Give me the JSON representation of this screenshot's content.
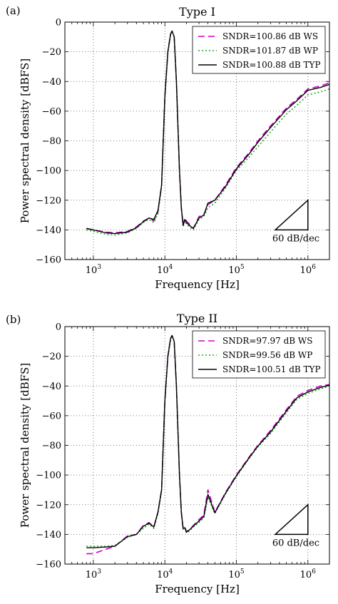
{
  "chart_data": [
    {
      "panel": "(a)",
      "type": "line",
      "title": "Type I",
      "xlabel": "Frequency [Hz]",
      "ylabel": "Power spectral density [dBFS]",
      "xscale": "log",
      "xlim": [
        400,
        2000000
      ],
      "ylim": [
        -160,
        0
      ],
      "xticks": [
        {
          "v": 1000,
          "base": "10",
          "exp": "3"
        },
        {
          "v": 10000,
          "base": "10",
          "exp": "4"
        },
        {
          "v": 100000,
          "base": "10",
          "exp": "5"
        },
        {
          "v": 1000000,
          "base": "10",
          "exp": "6"
        }
      ],
      "yticks": [
        0,
        -20,
        -40,
        -60,
        -80,
        -100,
        -120,
        -140,
        -160
      ],
      "ytick_labels": [
        "0",
        "−20",
        "−40",
        "−60",
        "−80",
        "−100",
        "−120",
        "−140",
        "−160"
      ],
      "grid": true,
      "legend_position": "top-right",
      "slope_marker": {
        "label": "60 dB/dec"
      },
      "series": [
        {
          "name": "SNDR=100.86 dB WS",
          "color": "#cc00cc",
          "dash": "9,5",
          "x": [
            800,
            1000,
            1500,
            2000,
            3000,
            4000,
            5000,
            6000,
            7000,
            8000,
            9000,
            10000,
            11000,
            12000,
            12600,
            13500,
            14500,
            16000,
            17000,
            18000,
            19000,
            20000,
            22000,
            25000,
            30000,
            35000,
            40000,
            50000,
            70000,
            100000,
            150000,
            200000,
            300000,
            500000,
            700000,
            1000000,
            1500000,
            2000000
          ],
          "y": [
            -139,
            -140,
            -141.5,
            -142,
            -141,
            -138,
            -134,
            -132,
            -134,
            -128,
            -110,
            -50,
            -20,
            -8,
            -6,
            -10,
            -40,
            -100,
            -125,
            -137,
            -132,
            -134,
            -136,
            -139,
            -131,
            -130,
            -123,
            -120,
            -110,
            -98,
            -88,
            -80,
            -70,
            -58,
            -52,
            -45,
            -43,
            -41
          ]
        },
        {
          "name": "SNDR=101.87 dB WP",
          "color": "#22aa22",
          "dash": "2,3",
          "x": [
            800,
            1000,
            1500,
            2000,
            3000,
            4000,
            5000,
            6000,
            7000,
            8000,
            9000,
            10000,
            11000,
            12000,
            12600,
            13500,
            14500,
            16000,
            17000,
            18000,
            19000,
            20000,
            22000,
            25000,
            30000,
            35000,
            40000,
            50000,
            70000,
            100000,
            150000,
            200000,
            300000,
            500000,
            700000,
            1000000,
            1500000,
            2000000
          ],
          "y": [
            -140,
            -141,
            -143,
            -143.5,
            -142,
            -139,
            -135,
            -133,
            -135,
            -129,
            -111,
            -52,
            -21,
            -9,
            -6,
            -10,
            -41,
            -101,
            -126,
            -138,
            -134,
            -136,
            -138,
            -140,
            -133,
            -131,
            -125,
            -122,
            -112,
            -100,
            -91,
            -84,
            -74,
            -62,
            -56,
            -49,
            -47,
            -45
          ]
        },
        {
          "name": "SNDR=100.88 dB TYP",
          "color": "#000000",
          "dash": "",
          "x": [
            800,
            1000,
            1500,
            2000,
            3000,
            4000,
            5000,
            6000,
            7000,
            8000,
            9000,
            10000,
            11000,
            12000,
            12600,
            13500,
            14500,
            16000,
            17000,
            18000,
            19000,
            20000,
            22000,
            25000,
            30000,
            35000,
            40000,
            50000,
            70000,
            100000,
            150000,
            200000,
            300000,
            500000,
            700000,
            1000000,
            1500000,
            2000000
          ],
          "y": [
            -139,
            -140,
            -142,
            -142.5,
            -141.5,
            -138.5,
            -134.5,
            -132,
            -133,
            -127,
            -110,
            -50,
            -20,
            -8,
            -6,
            -10,
            -40,
            -100,
            -125,
            -137,
            -133,
            -135,
            -137,
            -139,
            -132,
            -130,
            -122,
            -120,
            -111,
            -99,
            -89,
            -81,
            -71,
            -59,
            -53,
            -46,
            -44,
            -42
          ]
        }
      ]
    },
    {
      "panel": "(b)",
      "type": "line",
      "title": "Type II",
      "xlabel": "Frequency [Hz]",
      "ylabel": "Power spectral density [dBFS]",
      "xscale": "log",
      "xlim": [
        400,
        2000000
      ],
      "ylim": [
        -160,
        0
      ],
      "xticks": [
        {
          "v": 1000,
          "base": "10",
          "exp": "3"
        },
        {
          "v": 10000,
          "base": "10",
          "exp": "4"
        },
        {
          "v": 100000,
          "base": "10",
          "exp": "5"
        },
        {
          "v": 1000000,
          "base": "10",
          "exp": "6"
        }
      ],
      "yticks": [
        0,
        -20,
        -40,
        -60,
        -80,
        -100,
        -120,
        -140,
        -160
      ],
      "ytick_labels": [
        "0",
        "−20",
        "−40",
        "−60",
        "−80",
        "−100",
        "−120",
        "−140",
        "−160"
      ],
      "grid": true,
      "legend_position": "top-right",
      "slope_marker": {
        "label": "60 dB/dec"
      },
      "series": [
        {
          "name": "SNDR=97.97 dB WS",
          "color": "#cc00cc",
          "dash": "9,5",
          "x": [
            800,
            1000,
            1500,
            2000,
            3000,
            4000,
            5000,
            6000,
            7000,
            8000,
            9000,
            10000,
            11000,
            12000,
            12600,
            13500,
            14500,
            16000,
            17000,
            18000,
            19000,
            20000,
            22000,
            25000,
            30000,
            35000,
            40000,
            50000,
            70000,
            100000,
            150000,
            200000,
            300000,
            500000,
            700000,
            1000000,
            1500000,
            2000000
          ],
          "y": [
            -153,
            -153,
            -150,
            -148,
            -141,
            -140,
            -134,
            -132,
            -135,
            -125,
            -110,
            -50,
            -20,
            -8,
            -6,
            -10,
            -40,
            -100,
            -125,
            -136,
            -135,
            -138,
            -137,
            -134,
            -130,
            -127,
            -110,
            -125,
            -112,
            -100,
            -88,
            -80,
            -70,
            -56,
            -47,
            -43,
            -40,
            -39
          ]
        },
        {
          "name": "SNDR=99.56 dB WP",
          "color": "#22aa22",
          "dash": "2,3",
          "x": [
            800,
            1000,
            1500,
            2000,
            3000,
            4000,
            5000,
            6000,
            7000,
            8000,
            9000,
            10000,
            11000,
            12000,
            12600,
            13500,
            14500,
            16000,
            17000,
            18000,
            19000,
            20000,
            22000,
            25000,
            30000,
            35000,
            40000,
            50000,
            70000,
            100000,
            150000,
            200000,
            300000,
            500000,
            700000,
            1000000,
            1500000,
            2000000
          ],
          "y": [
            -148,
            -148,
            -148,
            -147.5,
            -142,
            -140,
            -136,
            -133,
            -136,
            -126,
            -111,
            -51,
            -21,
            -9,
            -6,
            -10,
            -41,
            -101,
            -126,
            -137,
            -136,
            -139,
            -138,
            -135,
            -132,
            -129,
            -115,
            -126,
            -113,
            -101,
            -89,
            -81,
            -72,
            -58,
            -49,
            -45,
            -42,
            -40
          ]
        },
        {
          "name": "SNDR=100.51 dB TYP",
          "color": "#000000",
          "dash": "",
          "x": [
            800,
            1000,
            1500,
            2000,
            3000,
            4000,
            5000,
            6000,
            7000,
            8000,
            9000,
            10000,
            11000,
            12000,
            12600,
            13500,
            14500,
            16000,
            17000,
            18000,
            19000,
            20000,
            22000,
            25000,
            30000,
            35000,
            40000,
            50000,
            70000,
            100000,
            150000,
            200000,
            300000,
            500000,
            700000,
            1000000,
            1500000,
            2000000
          ],
          "y": [
            -149,
            -149,
            -148.5,
            -148,
            -141.5,
            -140,
            -134.5,
            -132.5,
            -135,
            -125,
            -110,
            -50,
            -20,
            -8,
            -6,
            -10,
            -40,
            -100,
            -125,
            -136,
            -135.5,
            -138.5,
            -137,
            -134.5,
            -131,
            -128,
            -113,
            -125.5,
            -112.5,
            -100.5,
            -88.5,
            -80.5,
            -71,
            -57,
            -48,
            -44,
            -41,
            -39.5
          ]
        }
      ]
    }
  ]
}
